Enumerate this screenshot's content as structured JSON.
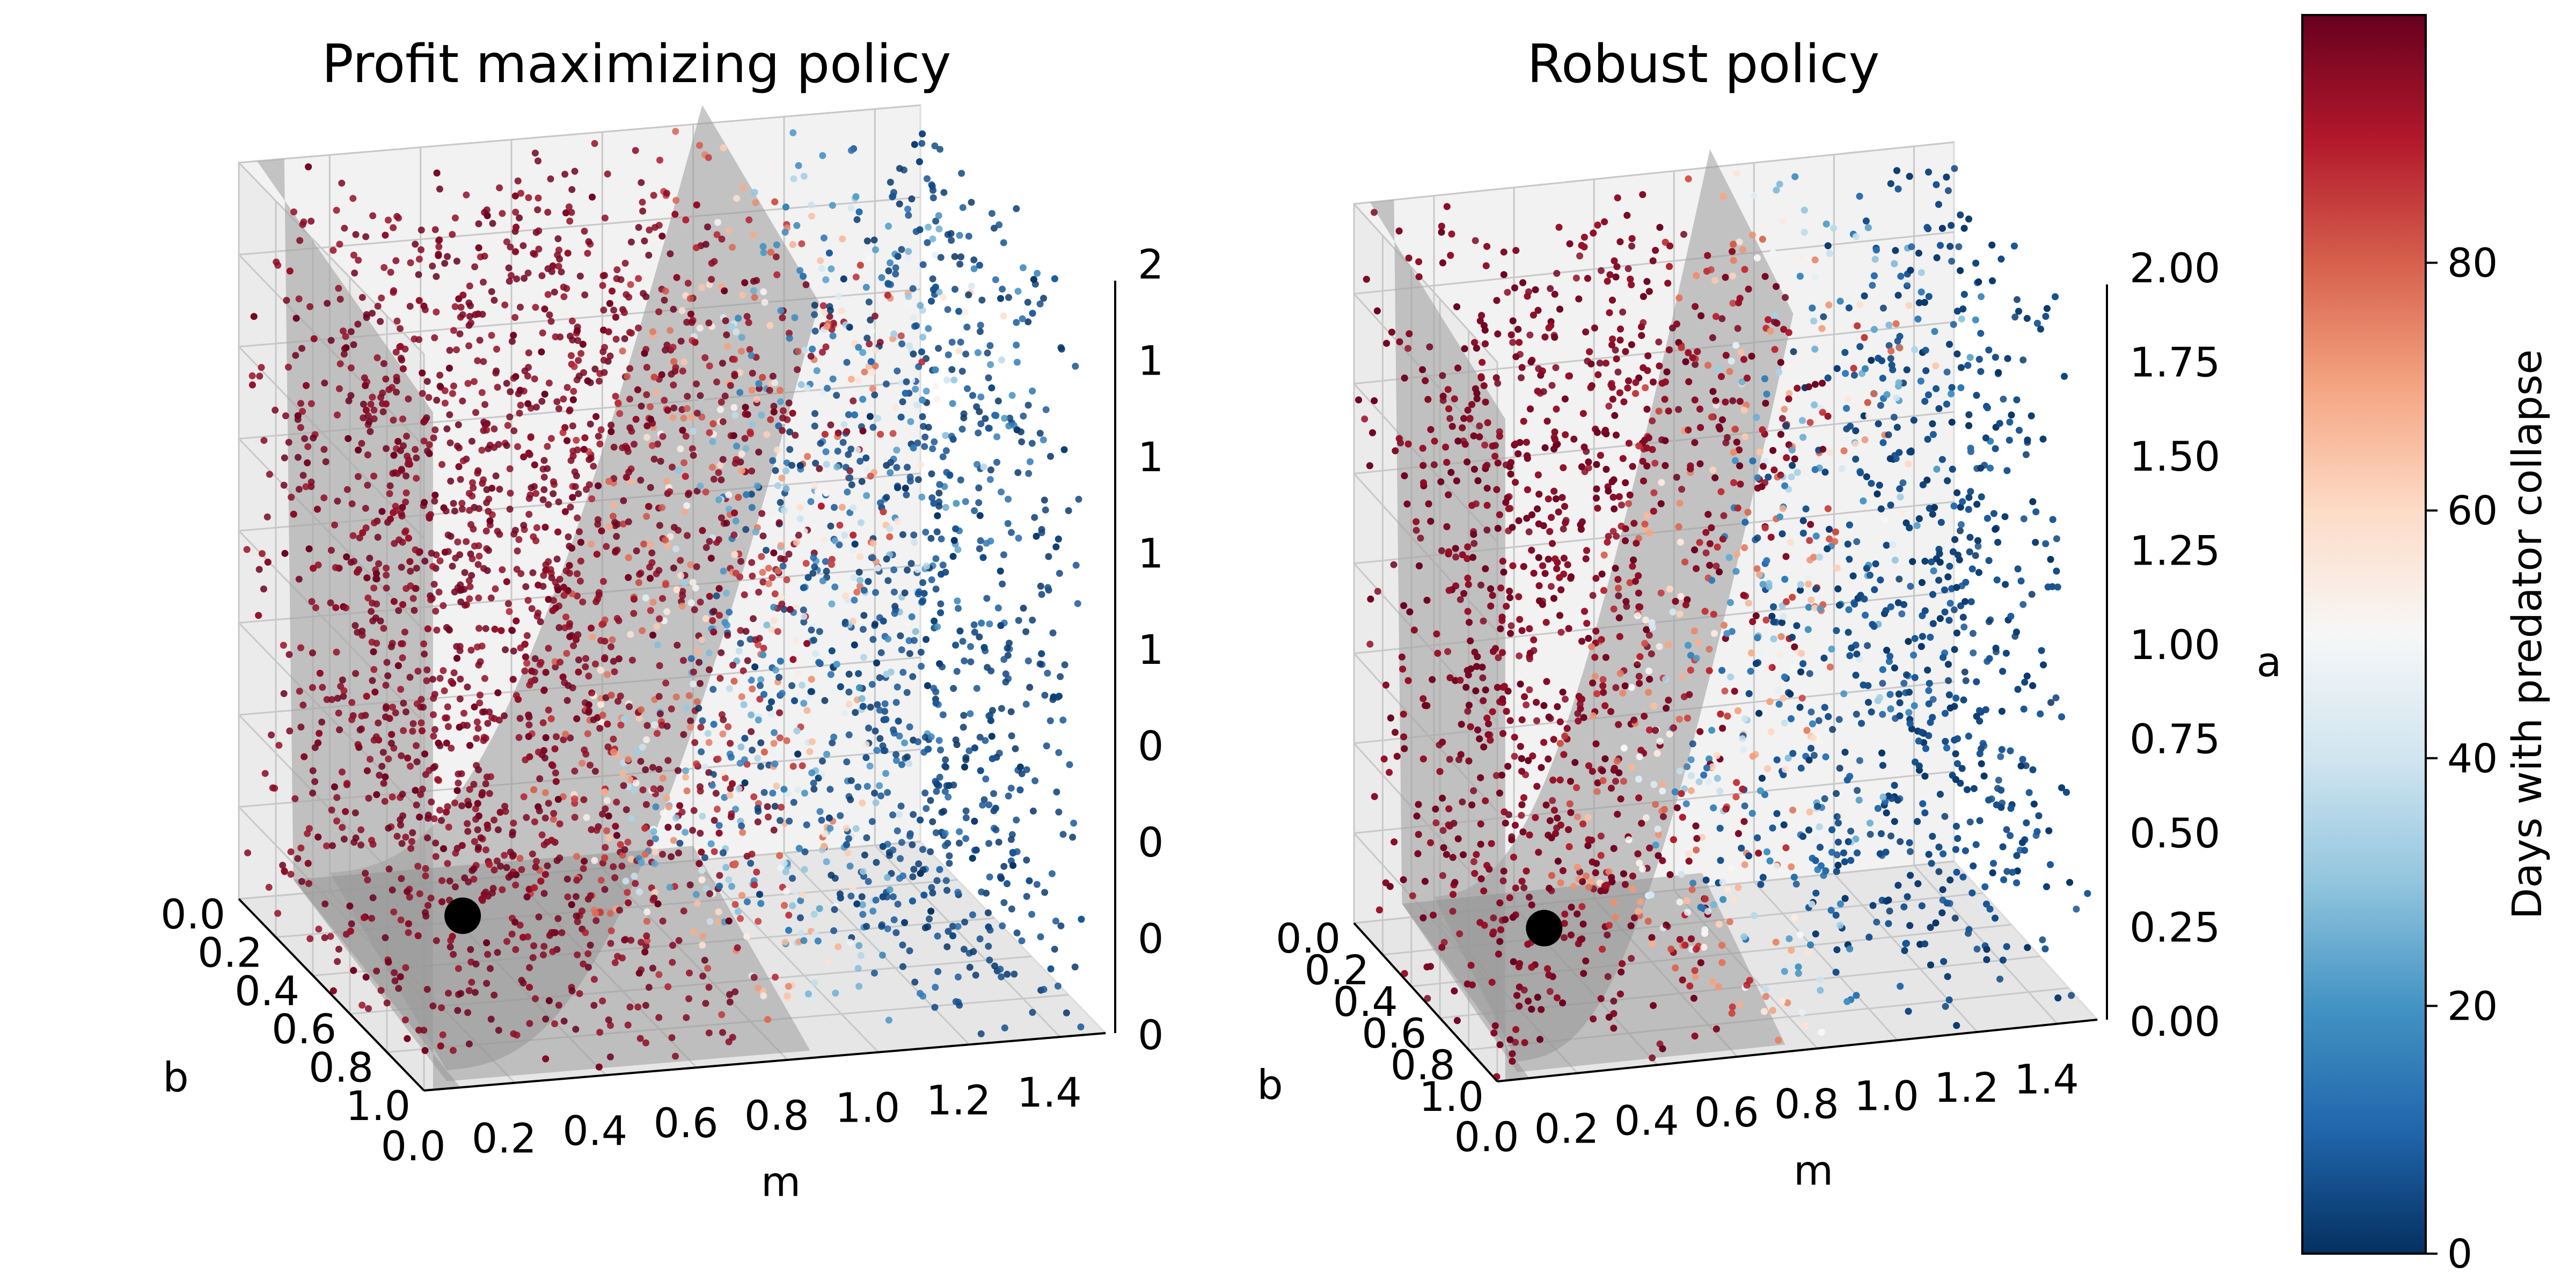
{
  "chart_data": [
    {
      "type": "scatter",
      "subtype": "3d-scatter",
      "title": "Profit maximizing policy",
      "xlabel": "m",
      "ylabel": "b",
      "zlabel": "",
      "xlim": [
        0.0,
        1.5
      ],
      "ylim": [
        0.0,
        1.0
      ],
      "zlim": [
        0.0,
        2.0
      ],
      "x_ticks": [
        "0.0",
        "0.2",
        "0.4",
        "0.6",
        "0.8",
        "1.0",
        "1.2",
        "1.4"
      ],
      "y_ticks": [
        "0.0",
        "0.2",
        "0.4",
        "0.6",
        "0.8",
        "1.0"
      ],
      "z_ticks": [
        "0",
        "0",
        "0",
        "0",
        "1",
        "1",
        "1",
        "1",
        "2"
      ],
      "grid": true,
      "n_points": 4000,
      "points_note": "random samples colored by days with predator collapse",
      "marked_point": {
        "m": 0.35,
        "b": 0.35,
        "a": 0.1,
        "color": "#000000"
      },
      "surface": "grey U-shaped surface (collapse boundary)",
      "collapse_boundary_m": 0.75
    },
    {
      "type": "scatter",
      "subtype": "3d-scatter",
      "title": "Robust policy",
      "xlabel": "m",
      "ylabel": "b",
      "zlabel": "a",
      "xlim": [
        0.0,
        1.5
      ],
      "ylim": [
        0.0,
        1.0
      ],
      "zlim": [
        0.0,
        2.0
      ],
      "x_ticks": [
        "0.0",
        "0.2",
        "0.4",
        "0.6",
        "0.8",
        "1.0",
        "1.2",
        "1.4"
      ],
      "y_ticks": [
        "0.0",
        "0.2",
        "0.4",
        "0.6",
        "0.8",
        "1.0"
      ],
      "z_ticks": [
        "0.00",
        "0.25",
        "0.50",
        "0.75",
        "1.00",
        "1.25",
        "1.50",
        "1.75",
        "2.00"
      ],
      "grid": true,
      "n_points": 4000,
      "points_note": "random samples colored by days with predator collapse",
      "marked_point": {
        "m": 0.35,
        "b": 0.35,
        "a": 0.1,
        "color": "#000000"
      },
      "surface": "grey U-shaped surface (collapse boundary)",
      "collapse_boundary_m": 0.62
    }
  ],
  "colorbar": {
    "label": "Days with predator collapse",
    "range": [
      0,
      100
    ],
    "ticks": [
      "0",
      "20",
      "40",
      "60",
      "80"
    ],
    "tick_values": [
      0,
      20,
      40,
      60,
      80
    ],
    "colormap": "RdBu_r",
    "color_stops": [
      "#053061",
      "#2166ac",
      "#4393c3",
      "#92c5de",
      "#d1e5f0",
      "#f7f7f7",
      "#fddbc7",
      "#f4a582",
      "#d6604d",
      "#b2182b",
      "#67001f"
    ]
  }
}
